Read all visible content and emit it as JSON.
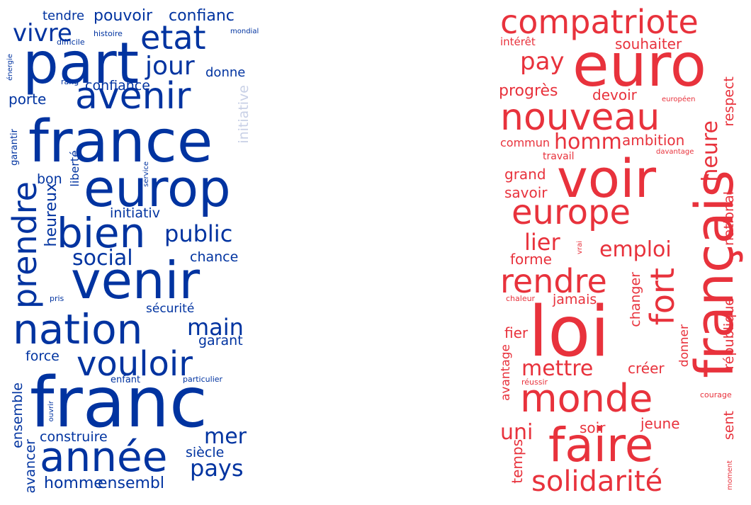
{
  "clouds": [
    {
      "color": "#0033a0",
      "faded_color": "#c8d0e6",
      "words": [
        "tendre",
        "pouvoir",
        "confianc",
        "vivre",
        "histoire",
        "etat",
        "difficile",
        "mondial",
        "part",
        "énergie",
        "jour",
        "rang",
        "confiance",
        "donne",
        "avenir",
        "porte",
        "initiative",
        "france",
        "garantir",
        "europ",
        "liberté",
        "service",
        "bon",
        "prendre",
        "heureux",
        "initiativ",
        "bien",
        "public",
        "social",
        "chance",
        "venir",
        "pris",
        "sécurité",
        "nation",
        "main",
        "garant",
        "force",
        "vouloir",
        "enfant",
        "particulier",
        "franc",
        "ensemble",
        "ouvrir",
        "construire",
        "mer",
        "avancer",
        "année",
        "siècle",
        "pays",
        "homme",
        "ensembl"
      ]
    },
    {
      "color": "#e8323c",
      "words": [
        "compatriote",
        "intérêt",
        "souhaiter",
        "euro",
        "pay",
        "progrès",
        "devoir",
        "européen",
        "respect",
        "nouveau",
        "heure",
        "commun",
        "homm",
        "ambition",
        "travail",
        "davantage",
        "voir",
        "grand",
        "savoir",
        "europe",
        "français",
        "lier",
        "national",
        "emploi",
        "forme",
        "vrai",
        "rendre",
        "fort",
        "chaleur",
        "jamais",
        "changer",
        "loi",
        "fier",
        "république",
        "donner",
        "avantage",
        "mettre",
        "créer",
        "réussir",
        "monde",
        "courage",
        "uni",
        "soir",
        "jeune",
        "sent",
        "temps",
        "faire",
        "moment",
        "solidarité"
      ]
    }
  ]
}
